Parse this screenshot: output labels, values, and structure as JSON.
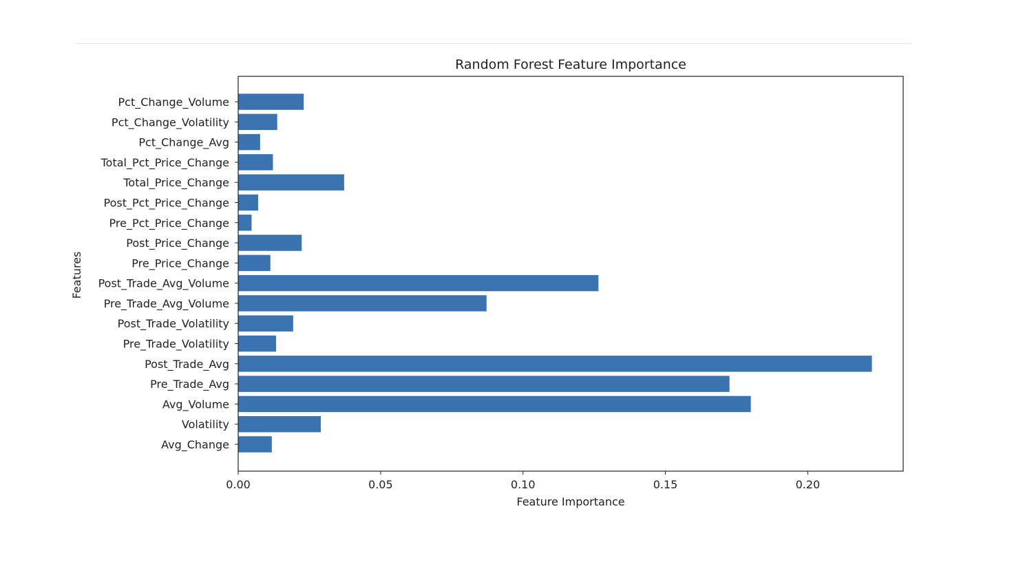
{
  "chart_data": {
    "type": "bar",
    "orientation": "horizontal",
    "title": "Random Forest Feature Importance",
    "xlabel": "Feature Importance",
    "ylabel": "Features",
    "xlim": [
      0,
      0.2335
    ],
    "xticks": [
      0.0,
      0.05,
      0.1,
      0.15,
      0.2
    ],
    "xtick_labels": [
      "0.00",
      "0.05",
      "0.10",
      "0.15",
      "0.20"
    ],
    "grid": false,
    "bar_color": "#3a73b0",
    "categories": [
      "Avg_Change",
      "Volatility",
      "Avg_Volume",
      "Pre_Trade_Avg",
      "Post_Trade_Avg",
      "Pre_Trade_Volatility",
      "Post_Trade_Volatility",
      "Pre_Trade_Avg_Volume",
      "Post_Trade_Avg_Volume",
      "Pre_Price_Change",
      "Post_Price_Change",
      "Pre_Pct_Price_Change",
      "Post_Pct_Price_Change",
      "Total_Price_Change",
      "Total_Pct_Price_Change",
      "Pct_Change_Avg",
      "Pct_Change_Volatility",
      "Pct_Change_Volume"
    ],
    "values": [
      0.0118,
      0.029,
      0.18,
      0.1725,
      0.2225,
      0.0133,
      0.0193,
      0.0872,
      0.1265,
      0.0113,
      0.0223,
      0.0047,
      0.007,
      0.0372,
      0.0122,
      0.0077,
      0.0137,
      0.023
    ]
  }
}
